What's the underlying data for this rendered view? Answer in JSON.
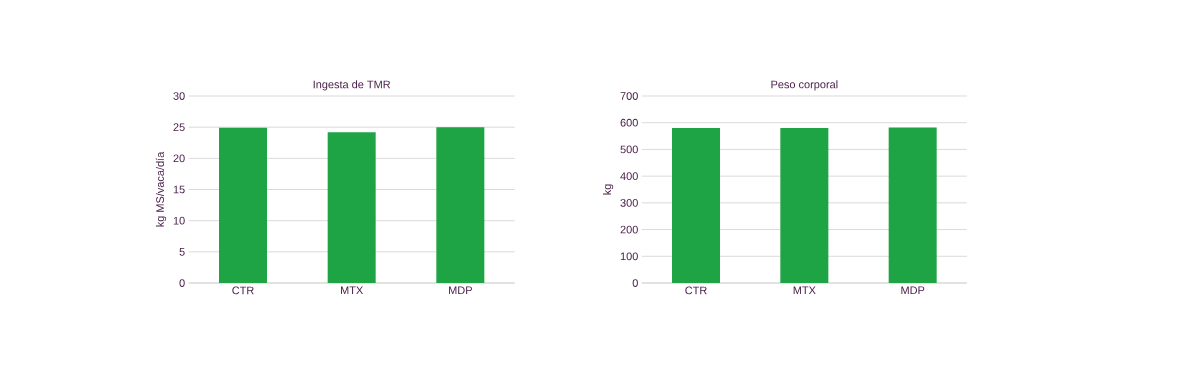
{
  "chart_data": [
    {
      "type": "bar",
      "title": "Ingesta de TMR",
      "ylabel": "kg MS/vaca/día",
      "categories": [
        "CTR",
        "MTX",
        "MDP"
      ],
      "values": [
        24.9,
        24.2,
        25.0
      ],
      "color": "#1ea345",
      "ylim": [
        0,
        30
      ],
      "yticks": [
        0,
        5,
        10,
        15,
        20,
        25,
        30
      ],
      "grid": "y"
    },
    {
      "type": "bar",
      "title": "Peso corporal",
      "ylabel": "kg",
      "categories": [
        "CTR",
        "MTX",
        "MDP"
      ],
      "values": [
        580,
        580,
        582
      ],
      "color": "#1ea345",
      "ylim": [
        0,
        700
      ],
      "yticks": [
        0,
        100,
        200,
        300,
        400,
        500,
        600,
        700
      ],
      "grid": "y"
    }
  ]
}
